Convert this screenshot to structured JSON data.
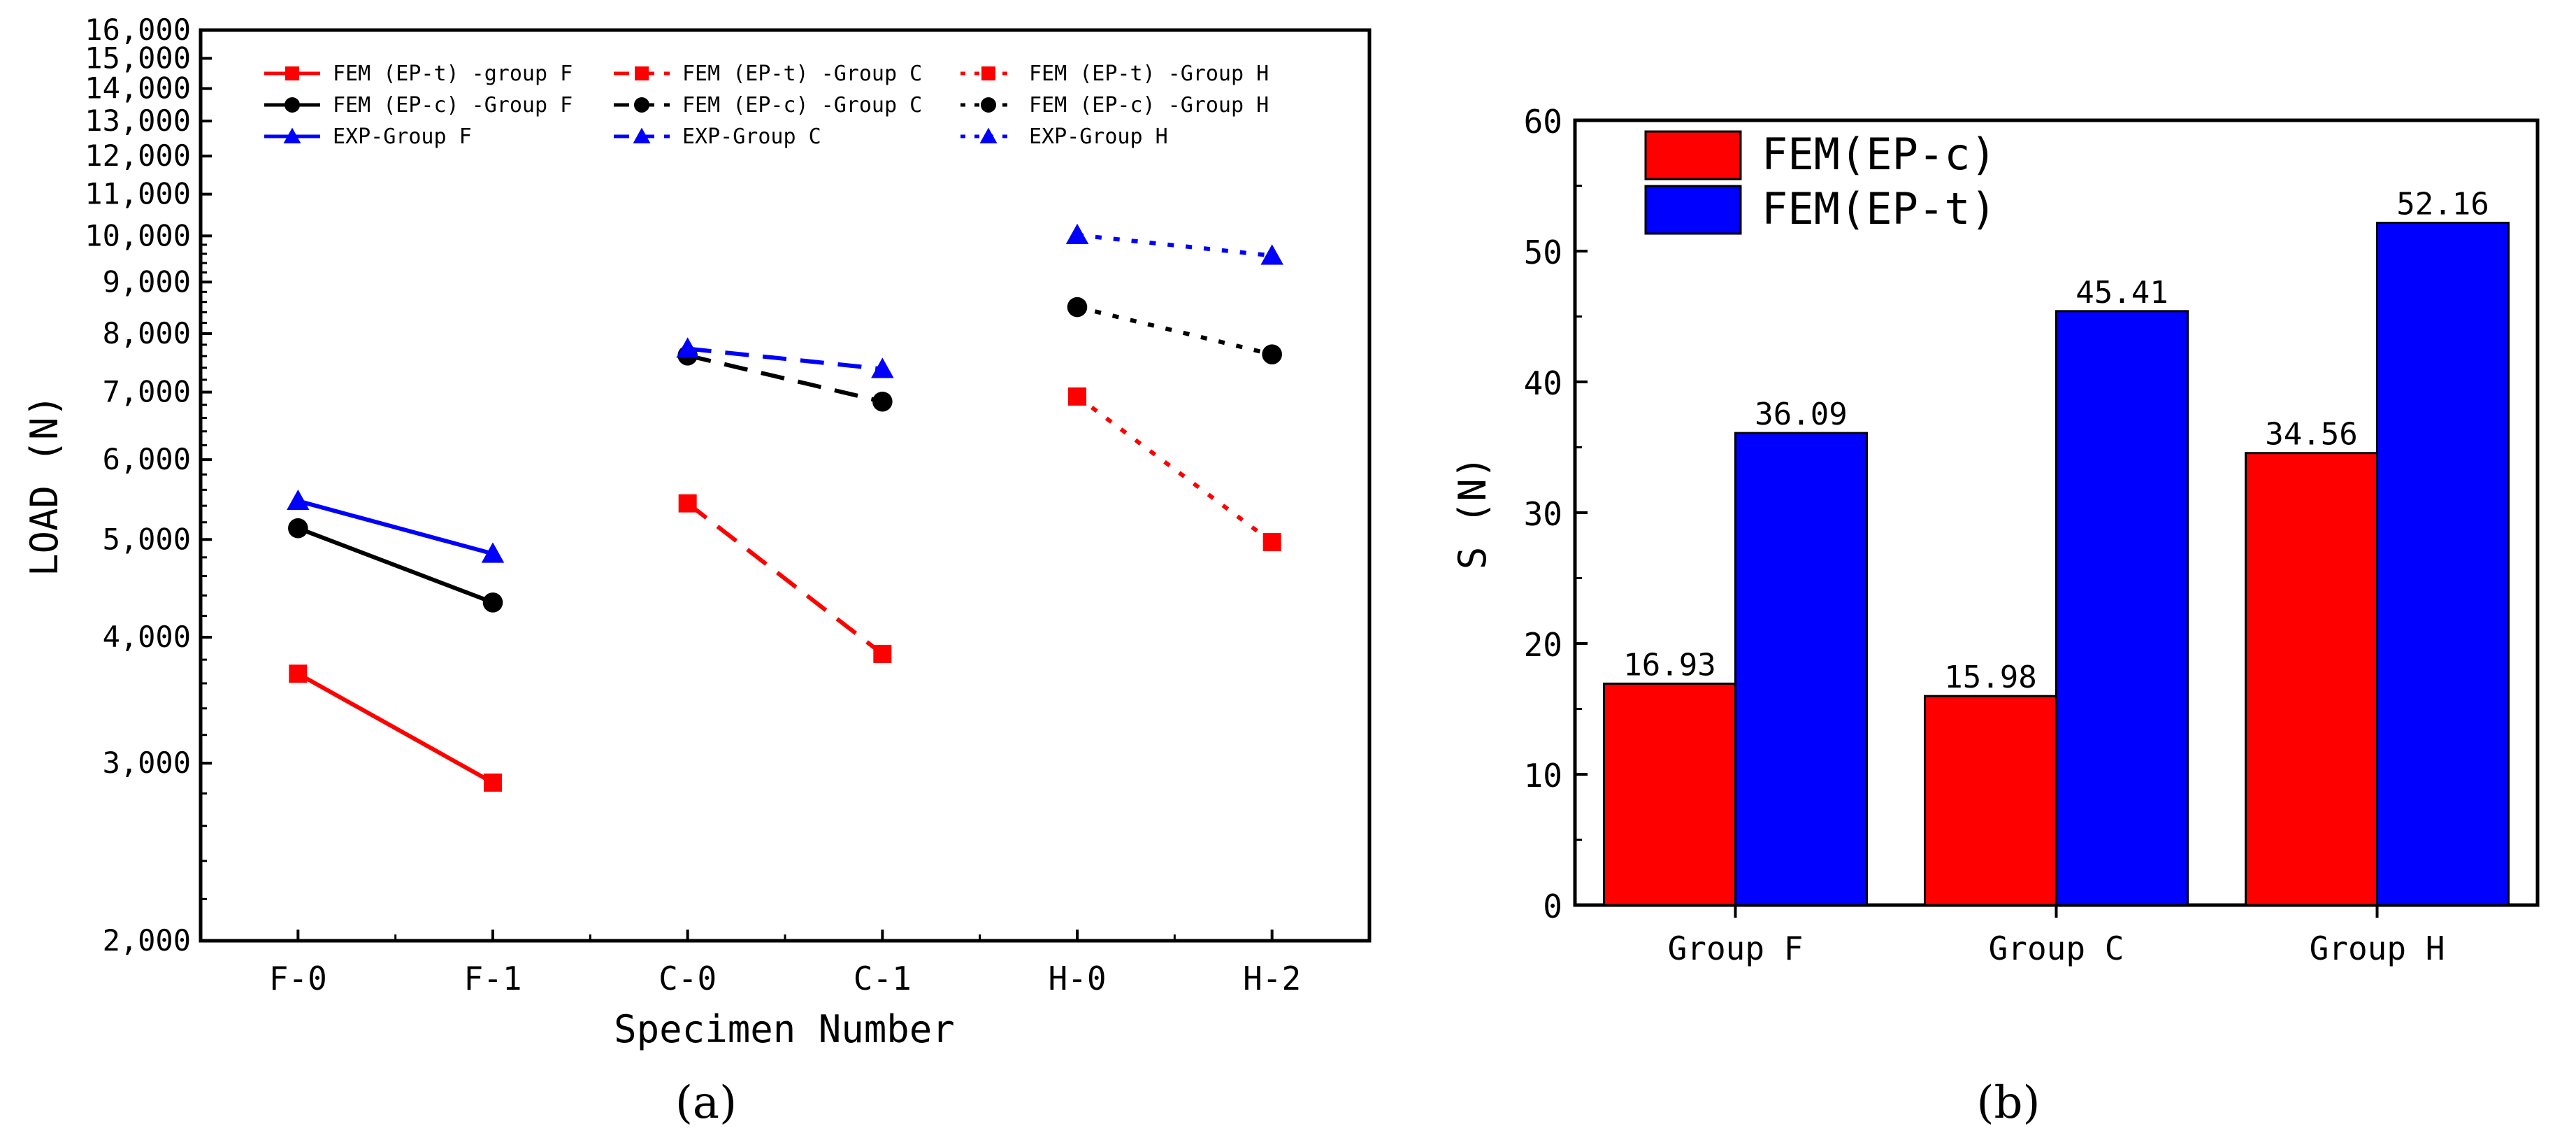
{
  "chart_data": [
    {
      "panel_label": "(a)",
      "type": "line",
      "yscale": "log",
      "xlabel": "Specimen Number",
      "ylabel": "LOAD (N)",
      "ylim": [
        2000,
        16000
      ],
      "categories": [
        "F-0",
        "F-1",
        "C-0",
        "C-1",
        "H-0",
        "H-2"
      ],
      "yticks": [
        {
          "value": 2000,
          "label": "2,000"
        },
        {
          "value": 3000,
          "label": "3,000"
        },
        {
          "value": 4000,
          "label": "4,000"
        },
        {
          "value": 5000,
          "label": "5,000"
        },
        {
          "value": 6000,
          "label": "6,000"
        },
        {
          "value": 7000,
          "label": "7,000"
        },
        {
          "value": 8000,
          "label": "8,000"
        },
        {
          "value": 9000,
          "label": "9,000"
        },
        {
          "value": 10000,
          "label": "10,000"
        },
        {
          "value": 11000,
          "label": "11,000"
        },
        {
          "value": 12000,
          "label": "12,000"
        },
        {
          "value": 13000,
          "label": "13,000"
        },
        {
          "value": 14000,
          "label": "14,000"
        },
        {
          "value": 15000,
          "label": "15,000"
        },
        {
          "value": 16000,
          "label": "16,000"
        }
      ],
      "series": [
        {
          "name": "FEM (EP-t) -group F",
          "color": "#ff0000",
          "marker": "square",
          "dash": "solid",
          "x": [
            0,
            1
          ],
          "values": [
            3680,
            2870
          ]
        },
        {
          "name": "FEM (EP-c) -Group F",
          "color": "#000000",
          "marker": "circle",
          "dash": "solid",
          "x": [
            0,
            1
          ],
          "values": [
            5130,
            4330
          ]
        },
        {
          "name": "EXP-Group F",
          "color": "#0000ff",
          "marker": "triangle",
          "dash": "solid",
          "x": [
            0,
            1
          ],
          "values": [
            5460,
            4840
          ]
        },
        {
          "name": "FEM (EP-t) -Group C",
          "color": "#ff0000",
          "marker": "square",
          "dash": "dashed",
          "x": [
            2,
            3
          ],
          "values": [
            5430,
            3850
          ]
        },
        {
          "name": "FEM (EP-c) -Group C",
          "color": "#000000",
          "marker": "circle",
          "dash": "dashed",
          "x": [
            2,
            3
          ],
          "values": [
            7610,
            6850
          ]
        },
        {
          "name": "EXP-Group C",
          "color": "#0000ff",
          "marker": "triangle",
          "dash": "dashed",
          "x": [
            2,
            3
          ],
          "values": [
            7730,
            7380
          ]
        },
        {
          "name": "FEM (EP-t) -Group H",
          "color": "#ff0000",
          "marker": "square",
          "dash": "dotted",
          "x": [
            4,
            5
          ],
          "values": [
            6930,
            4970
          ]
        },
        {
          "name": "FEM (EP-c) -Group H",
          "color": "#000000",
          "marker": "circle",
          "dash": "dotted",
          "x": [
            4,
            5
          ],
          "values": [
            8500,
            7630
          ]
        },
        {
          "name": "EXP-Group H",
          "color": "#0000ff",
          "marker": "triangle",
          "dash": "dotted",
          "x": [
            4,
            5
          ],
          "values": [
            10020,
            9560
          ]
        }
      ]
    },
    {
      "panel_label": "(b)",
      "type": "bar",
      "xlabel": "",
      "ylabel": "S (N)",
      "ylim": [
        0,
        60
      ],
      "yticks": [
        0,
        10,
        20,
        30,
        40,
        50,
        60
      ],
      "categories": [
        "Group F",
        "Group C",
        "Group H"
      ],
      "series": [
        {
          "name": "FEM(EP-c)",
          "color": "#ff0000",
          "values": [
            16.93,
            15.98,
            34.56
          ],
          "labels": [
            "16.93",
            "15.98",
            "34.56"
          ]
        },
        {
          "name": "FEM(EP-t)",
          "color": "#0000ff",
          "values": [
            36.09,
            45.41,
            52.16
          ],
          "labels": [
            "36.09",
            "45.41",
            "52.16"
          ]
        }
      ]
    }
  ]
}
